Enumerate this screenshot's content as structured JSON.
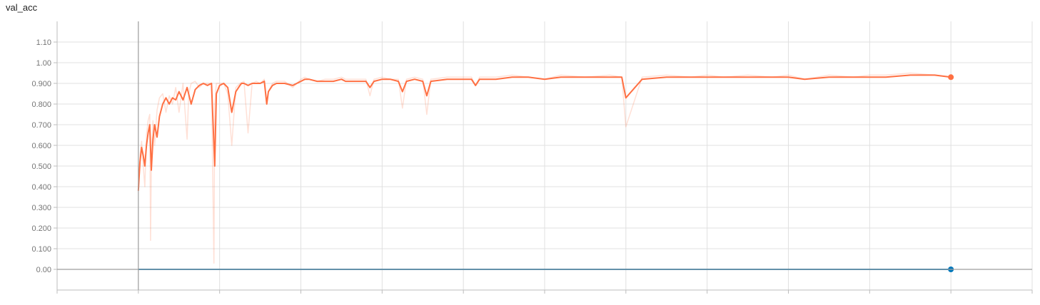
{
  "chart_data": {
    "type": "line",
    "title": "val_acc",
    "xlabel": "",
    "ylabel": "",
    "ylim": [
      -0.1,
      1.2
    ],
    "xlim": [
      -1,
      11
    ],
    "grid": true,
    "y_ticks": [
      "0.00",
      "0.100",
      "0.200",
      "0.300",
      "0.400",
      "0.500",
      "0.600",
      "0.700",
      "0.800",
      "0.900",
      "1.00",
      "1.10"
    ],
    "y_tick_values": [
      0,
      0.1,
      0.2,
      0.3,
      0.4,
      0.5,
      0.6,
      0.7,
      0.8,
      0.9,
      1.0,
      1.1
    ],
    "series": [
      {
        "color": "#ff7043",
        "smoothed": true,
        "x": [
          0,
          0.02,
          0.04,
          0.06,
          0.08,
          0.1,
          0.12,
          0.14,
          0.16,
          0.18,
          0.2,
          0.23,
          0.26,
          0.3,
          0.34,
          0.38,
          0.42,
          0.46,
          0.5,
          0.55,
          0.6,
          0.65,
          0.7,
          0.75,
          0.8,
          0.85,
          0.9,
          0.92,
          0.94,
          0.96,
          1.0,
          1.05,
          1.1,
          1.15,
          1.2,
          1.25,
          1.27,
          1.3,
          1.35,
          1.4,
          1.45,
          1.5,
          1.55,
          1.58,
          1.6,
          1.65,
          1.7,
          1.8,
          1.9,
          2.0,
          2.05,
          2.1,
          2.2,
          2.3,
          2.4,
          2.5,
          2.55,
          2.6,
          2.8,
          2.85,
          2.9,
          3.0,
          3.1,
          3.2,
          3.25,
          3.3,
          3.4,
          3.5,
          3.55,
          3.6,
          3.8,
          4.0,
          4.1,
          4.15,
          4.2,
          4.4,
          4.6,
          4.8,
          5.0,
          5.2,
          5.5,
          5.8,
          5.95,
          6.0,
          6.2,
          6.5,
          6.8,
          7.0,
          7.2,
          7.5,
          7.8,
          8.0,
          8.2,
          8.5,
          8.8,
          9.0,
          9.2,
          9.5,
          9.8,
          10.0
        ],
        "values": [
          0.38,
          0.52,
          0.59,
          0.55,
          0.5,
          0.6,
          0.66,
          0.7,
          0.48,
          0.63,
          0.7,
          0.64,
          0.74,
          0.8,
          0.83,
          0.8,
          0.83,
          0.82,
          0.86,
          0.82,
          0.88,
          0.8,
          0.87,
          0.89,
          0.9,
          0.89,
          0.9,
          0.7,
          0.5,
          0.85,
          0.89,
          0.9,
          0.88,
          0.76,
          0.86,
          0.89,
          0.9,
          0.9,
          0.89,
          0.9,
          0.9,
          0.9,
          0.91,
          0.8,
          0.86,
          0.89,
          0.9,
          0.9,
          0.89,
          0.91,
          0.92,
          0.92,
          0.91,
          0.91,
          0.91,
          0.92,
          0.91,
          0.91,
          0.91,
          0.88,
          0.91,
          0.92,
          0.92,
          0.91,
          0.86,
          0.91,
          0.92,
          0.91,
          0.84,
          0.91,
          0.92,
          0.92,
          0.92,
          0.89,
          0.92,
          0.92,
          0.93,
          0.93,
          0.92,
          0.93,
          0.93,
          0.93,
          0.93,
          0.83,
          0.92,
          0.93,
          0.93,
          0.93,
          0.93,
          0.93,
          0.93,
          0.93,
          0.92,
          0.93,
          0.93,
          0.93,
          0.93,
          0.94,
          0.94,
          0.93
        ]
      },
      {
        "color": "#ff7043",
        "smoothed": false,
        "x": [
          0,
          0.02,
          0.04,
          0.06,
          0.08,
          0.1,
          0.12,
          0.14,
          0.15,
          0.16,
          0.18,
          0.2,
          0.23,
          0.26,
          0.3,
          0.34,
          0.38,
          0.42,
          0.46,
          0.5,
          0.55,
          0.6,
          0.62,
          0.65,
          0.7,
          0.75,
          0.8,
          0.85,
          0.9,
          0.93,
          0.94,
          0.96,
          1.0,
          1.05,
          1.1,
          1.15,
          1.2,
          1.25,
          1.3,
          1.35,
          1.4,
          1.45,
          1.5,
          1.55,
          1.58,
          1.6,
          1.65,
          1.7,
          1.8,
          1.9,
          2.0,
          2.05,
          2.1,
          2.2,
          2.3,
          2.4,
          2.5,
          2.55,
          2.6,
          2.8,
          2.85,
          2.9,
          3.0,
          3.1,
          3.2,
          3.25,
          3.3,
          3.4,
          3.5,
          3.55,
          3.6,
          3.8,
          4.0,
          4.1,
          4.15,
          4.2,
          4.4,
          4.6,
          4.8,
          5.0,
          5.2,
          5.5,
          5.8,
          5.95,
          6.0,
          6.2,
          6.5,
          6.8,
          7.0,
          7.2,
          7.5,
          7.8,
          8.0,
          8.2,
          8.5,
          8.8,
          9.0,
          9.2,
          9.5,
          9.8,
          10.0
        ],
        "values": [
          0.4,
          0.55,
          0.62,
          0.5,
          0.4,
          0.65,
          0.72,
          0.75,
          0.14,
          0.5,
          0.72,
          0.6,
          0.77,
          0.83,
          0.85,
          0.76,
          0.84,
          0.8,
          0.88,
          0.76,
          0.9,
          0.63,
          0.85,
          0.9,
          0.91,
          0.88,
          0.9,
          0.9,
          0.9,
          0.03,
          0.8,
          0.9,
          0.9,
          0.9,
          0.85,
          0.6,
          0.88,
          0.9,
          0.91,
          0.66,
          0.9,
          0.91,
          0.9,
          0.92,
          0.8,
          0.86,
          0.9,
          0.91,
          0.91,
          0.88,
          0.92,
          0.93,
          0.92,
          0.91,
          0.92,
          0.92,
          0.93,
          0.92,
          0.92,
          0.92,
          0.84,
          0.92,
          0.93,
          0.92,
          0.92,
          0.78,
          0.92,
          0.93,
          0.92,
          0.75,
          0.92,
          0.93,
          0.93,
          0.93,
          0.89,
          0.93,
          0.93,
          0.94,
          0.93,
          0.92,
          0.94,
          0.93,
          0.94,
          0.93,
          0.69,
          0.93,
          0.94,
          0.93,
          0.94,
          0.93,
          0.94,
          0.93,
          0.94,
          0.92,
          0.94,
          0.93,
          0.94,
          0.94,
          0.95,
          0.94,
          0.93
        ]
      },
      {
        "color": "#0077bb",
        "smoothed": true,
        "x": [
          0,
          10
        ],
        "values": [
          0,
          0
        ]
      }
    ]
  }
}
